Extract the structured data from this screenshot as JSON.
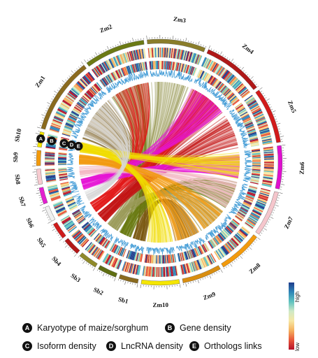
{
  "chromosomes": [
    {
      "id": "Zm1",
      "len": 300,
      "color": "#8a6a1e"
    },
    {
      "id": "Zm2",
      "len": 240,
      "color": "#6b7a14"
    },
    {
      "id": "Zm3",
      "len": 230,
      "color": "#8a7d2a"
    },
    {
      "id": "Zm4",
      "len": 240,
      "color": "#b01818"
    },
    {
      "id": "Zm5",
      "len": 220,
      "color": "#d21a1a"
    },
    {
      "id": "Zm6",
      "len": 170,
      "color": "#e00fcf"
    },
    {
      "id": "Zm7",
      "len": 180,
      "color": "#f5c6cc"
    },
    {
      "id": "Zm8",
      "len": 175,
      "color": "#f29a0c"
    },
    {
      "id": "Zm9",
      "len": 155,
      "color": "#d98e10"
    },
    {
      "id": "Zm10",
      "len": 150,
      "color": "#f5e600"
    },
    {
      "id": "Sb1",
      "len": 75,
      "color": "#8a6a1e"
    },
    {
      "id": "Sb2",
      "len": 75,
      "color": "#5f6e12"
    },
    {
      "id": "Sb3",
      "len": 75,
      "color": "#8f8a2a"
    },
    {
      "id": "Sb4",
      "len": 68,
      "color": "#b31717"
    },
    {
      "id": "Sb5",
      "len": 65,
      "color": "#cf1c1c"
    },
    {
      "id": "Sb6",
      "len": 60,
      "color": "#f0f0f0"
    },
    {
      "id": "Sb7",
      "len": 65,
      "color": "#e31fd0"
    },
    {
      "id": "Sb8",
      "len": 60,
      "color": "#f6cbd0"
    },
    {
      "id": "Sb9",
      "len": 60,
      "color": "#f29a0c"
    },
    {
      "id": "Sb10",
      "len": 60,
      "color": "#f5e600"
    }
  ],
  "track_markers": [
    "A",
    "B",
    "C",
    "D",
    "E"
  ],
  "legend": [
    {
      "badge": "A",
      "label": "Karyotype of maize/sorghum"
    },
    {
      "badge": "B",
      "label": "Gene density"
    },
    {
      "badge": "C",
      "label": "Isoform density"
    },
    {
      "badge": "D",
      "label": "LncRNA density"
    },
    {
      "badge": "E",
      "label": "Orthologs links"
    }
  ],
  "scale": {
    "high": "high",
    "low": "low",
    "colors": [
      "#1f3c8c",
      "#2e86b8",
      "#5fc3c0",
      "#cfe9c6",
      "#f7e7a4",
      "#f5b15e",
      "#e8563a",
      "#b5122b"
    ]
  },
  "links": [
    {
      "from": "Sb1",
      "to": "Zm1",
      "color": "#7a5a12"
    },
    {
      "from": "Sb1",
      "to": "Zm9",
      "color": "#7a5a12"
    },
    {
      "from": "Sb2",
      "to": "Zm2",
      "color": "#6a7a12"
    },
    {
      "from": "Sb2",
      "to": "Zm7",
      "color": "#6a7a12"
    },
    {
      "from": "Sb3",
      "to": "Zm3",
      "color": "#9a9a5a"
    },
    {
      "from": "Sb3",
      "to": "Zm8",
      "color": "#9a9a5a"
    },
    {
      "from": "Sb4",
      "to": "Zm4",
      "color": "#c21414"
    },
    {
      "from": "Sb4",
      "to": "Zm5",
      "color": "#c21414"
    },
    {
      "from": "Sb5",
      "to": "Zm4",
      "color": "#e11a1a"
    },
    {
      "from": "Sb5",
      "to": "Zm2",
      "color": "#e11a1a"
    },
    {
      "from": "Sb7",
      "to": "Zm6",
      "color": "#e514d5"
    },
    {
      "from": "Sb7",
      "to": "Zm4",
      "color": "#e514d5"
    },
    {
      "from": "Sb8",
      "to": "Zm7",
      "color": "#f3b8c2"
    },
    {
      "from": "Sb9",
      "to": "Zm8",
      "color": "#f39a12"
    },
    {
      "from": "Sb9",
      "to": "Zm9",
      "color": "#f39a12"
    },
    {
      "from": "Sb10",
      "to": "Zm10",
      "color": "#f0dc00"
    },
    {
      "from": "Sb10",
      "to": "Zm6",
      "color": "#f0dc00"
    },
    {
      "from": "Sb6",
      "to": "Zm1",
      "color": "#d8d8d8"
    }
  ]
}
